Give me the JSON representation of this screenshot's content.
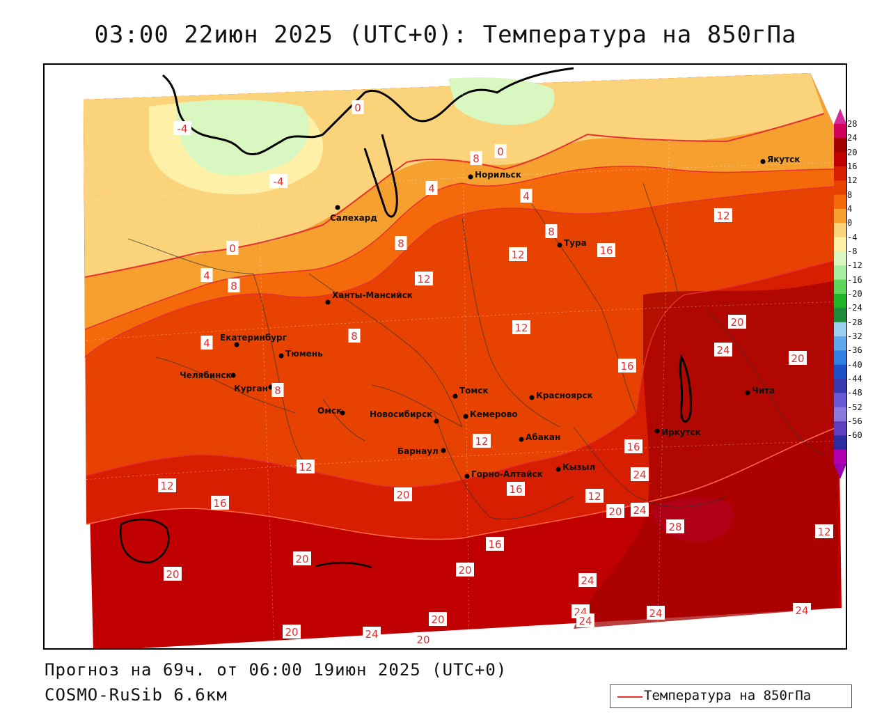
{
  "title": "03:00 22июн 2025 (UTC+0): Температура на 850гПа",
  "forecast_text": "Прогноз на 69ч. от 06:00 19июн 2025 (UTC+0)",
  "model_text": "COSMO-RuSib 6.6км",
  "legend_label": "Температура на 850гПа",
  "colorbar": {
    "ticks": [
      "28",
      "24",
      "20",
      "16",
      "12",
      "8",
      "4",
      "0",
      "-4",
      "-8",
      "-12",
      "-16",
      "-20",
      "-24",
      "-28",
      "-32",
      "-36",
      "-40",
      "-44",
      "-48",
      "-52",
      "-56",
      "-60"
    ],
    "colors": [
      "#d1005a",
      "#a30000",
      "#c00000",
      "#d81e00",
      "#e84200",
      "#f46a0a",
      "#f6a030",
      "#fbd37a",
      "#fff0a8",
      "#d9f7c0",
      "#a6eea0",
      "#5ed65a",
      "#20b428",
      "#1d8c3a",
      "#9dd0f0",
      "#5fa8ec",
      "#2f80e0",
      "#2050c8",
      "#3838b0",
      "#6a5ad8",
      "#8a7ae0",
      "#6040c0",
      "#2c2ca0",
      "#b000b0"
    ],
    "top_color": "#d22a9a",
    "bottom_color": "#9a00b0"
  },
  "cities": [
    {
      "name": "Якутск"
    },
    {
      "name": "Норильск"
    },
    {
      "name": "Салехард"
    },
    {
      "name": "Тура"
    },
    {
      "name": "Ханты-Мансийск"
    },
    {
      "name": "Екатеринбург"
    },
    {
      "name": "Тюмень"
    },
    {
      "name": "Челябинск"
    },
    {
      "name": "Курган"
    },
    {
      "name": "Омск"
    },
    {
      "name": "Томск"
    },
    {
      "name": "Красноярск"
    },
    {
      "name": "Новосибирск"
    },
    {
      "name": "Кемерово"
    },
    {
      "name": "Абакан"
    },
    {
      "name": "Барнаул"
    },
    {
      "name": "Горно-Алтайск"
    },
    {
      "name": "Кызыл"
    },
    {
      "name": "Иркутск"
    },
    {
      "name": "Чита"
    }
  ],
  "isotherm_labels": [
    "0",
    "0",
    "-4",
    "-4",
    "4",
    "0",
    "4",
    "8",
    "8",
    "4",
    "8",
    "4",
    "8",
    "12",
    "12",
    "8",
    "12",
    "16",
    "12",
    "8",
    "12",
    "12",
    "16",
    "20",
    "24",
    "20",
    "16",
    "20",
    "12",
    "16",
    "16",
    "24",
    "12",
    "20",
    "24",
    "28",
    "12",
    "16",
    "20",
    "24",
    "20",
    "20",
    "24",
    "24",
    "24",
    "20",
    "20",
    "24",
    "24",
    "20"
  ]
}
